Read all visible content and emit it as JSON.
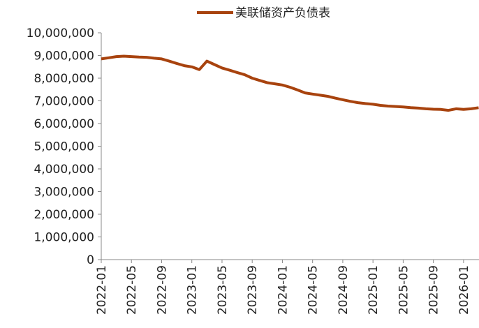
{
  "chart_data": {
    "type": "line",
    "categories": [
      "2022-01",
      null,
      null,
      null,
      "2022-05",
      null,
      null,
      null,
      "2022-09",
      null,
      null,
      null,
      "2023-01",
      null,
      null,
      null,
      "2023-05",
      null,
      null,
      null,
      "2023-09",
      null,
      null,
      null,
      "2024-01",
      null,
      null,
      null,
      "2024-05",
      null,
      null,
      null,
      "2024-09",
      null,
      null,
      null,
      "2025-01",
      null,
      null,
      null,
      "2025-05",
      null,
      null,
      null,
      "2025-09",
      null,
      null,
      null,
      "2026-01",
      null,
      null
    ],
    "series": [
      {
        "name": "美联储资产负债表",
        "color": "#a8430e",
        "values": [
          8850000,
          8900000,
          8950000,
          8970000,
          8950000,
          8930000,
          8920000,
          8880000,
          8850000,
          8750000,
          8650000,
          8550000,
          8500000,
          8380000,
          8750000,
          8600000,
          8450000,
          8350000,
          8250000,
          8150000,
          8000000,
          7900000,
          7800000,
          7750000,
          7700000,
          7600000,
          7480000,
          7350000,
          7300000,
          7250000,
          7200000,
          7120000,
          7050000,
          6980000,
          6920000,
          6880000,
          6850000,
          6800000,
          6770000,
          6750000,
          6730000,
          6700000,
          6680000,
          6650000,
          6630000,
          6620000,
          6580000,
          6650000,
          6620000,
          6650000,
          6700000
        ]
      }
    ],
    "ylim": [
      0,
      10000000
    ],
    "yticks": [
      0,
      {
        "value": 1000000,
        "label": "1,000,000"
      },
      {
        "value": 2000000,
        "label": "2,000,000"
      },
      {
        "value": 3000000,
        "label": "3,000,000"
      },
      {
        "value": 4000000,
        "label": "4,000,000"
      },
      {
        "value": 5000000,
        "label": "5,000,000"
      },
      {
        "value": 6000000,
        "label": "6,000,000"
      },
      {
        "value": 7000000,
        "label": "7,000,000"
      },
      {
        "value": 8000000,
        "label": "8,000,000"
      },
      {
        "value": 9000000,
        "label": "9,000,000"
      },
      {
        "value": 10000000,
        "label": "10,000,000"
      }
    ],
    "legend": "top"
  }
}
